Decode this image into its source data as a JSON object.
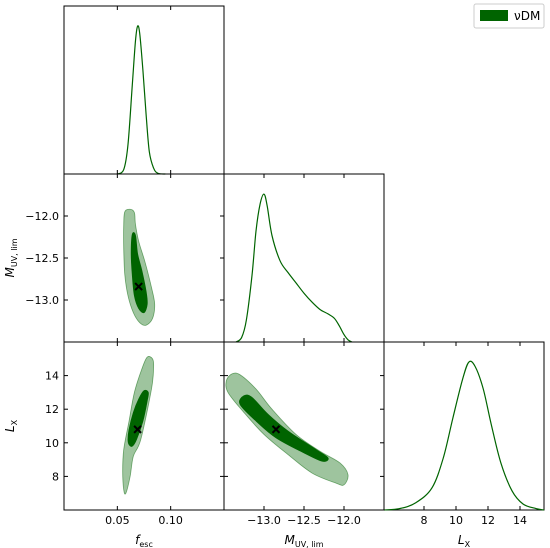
{
  "chart_data": {
    "type": "corner-plot",
    "series": [
      {
        "name": "νDM",
        "color": "#006400"
      }
    ],
    "params": [
      {
        "id": "fesc",
        "label": {
          "main": "f",
          "sub": "esc"
        },
        "range": [
          0.0,
          0.15
        ],
        "ticks": [
          0.05,
          0.1
        ],
        "tick_labels": [
          "0.05",
          "0.10"
        ],
        "marginal": [
          [
            0.05,
            0
          ],
          [
            0.056,
            0.03
          ],
          [
            0.06,
            0.2
          ],
          [
            0.064,
            0.6
          ],
          [
            0.067,
            0.9
          ],
          [
            0.069,
            1.0
          ],
          [
            0.071,
            0.95
          ],
          [
            0.074,
            0.7
          ],
          [
            0.077,
            0.4
          ],
          [
            0.08,
            0.15
          ],
          [
            0.084,
            0.04
          ],
          [
            0.088,
            0.005
          ],
          [
            0.095,
            0
          ]
        ]
      },
      {
        "id": "muv",
        "label": {
          "main": "M",
          "sub": "UV, lim"
        },
        "range": [
          -13.5,
          -11.5
        ],
        "ticks": [
          -13.0,
          -12.5,
          -12.0
        ],
        "tick_labels": [
          "−13.0",
          "−12.5",
          "−12.0"
        ],
        "y_ticks": [
          -13.0,
          -12.5,
          -12.0
        ],
        "y_tick_labels": [
          "−13.0",
          "−12.5",
          "−12.0"
        ],
        "y_range": [
          -13.5,
          -11.5
        ],
        "marginal": [
          [
            -13.35,
            0
          ],
          [
            -13.28,
            0.03
          ],
          [
            -13.22,
            0.15
          ],
          [
            -13.15,
            0.45
          ],
          [
            -13.1,
            0.75
          ],
          [
            -13.05,
            0.93
          ],
          [
            -13.0,
            1.0
          ],
          [
            -12.96,
            0.92
          ],
          [
            -12.9,
            0.72
          ],
          [
            -12.8,
            0.55
          ],
          [
            -12.7,
            0.47
          ],
          [
            -12.6,
            0.4
          ],
          [
            -12.5,
            0.33
          ],
          [
            -12.4,
            0.27
          ],
          [
            -12.3,
            0.22
          ],
          [
            -12.2,
            0.19
          ],
          [
            -12.12,
            0.16
          ],
          [
            -12.06,
            0.11
          ],
          [
            -12.0,
            0.05
          ],
          [
            -11.95,
            0.015
          ],
          [
            -11.9,
            0
          ]
        ]
      },
      {
        "id": "lx",
        "label": {
          "main": "L",
          "sub": "X"
        },
        "range": [
          5.5,
          15.5
        ],
        "ticks": [
          8,
          10,
          12,
          14
        ],
        "tick_labels": [
          "8",
          "10",
          "12",
          "14"
        ],
        "y_range": [
          6.0,
          16.0
        ],
        "y_ticks": [
          8,
          10,
          12,
          14
        ],
        "y_tick_labels": [
          "8",
          "10",
          "12",
          "14"
        ],
        "marginal": [
          [
            5.5,
            0.0
          ],
          [
            6.5,
            0.01
          ],
          [
            7.5,
            0.05
          ],
          [
            8.5,
            0.15
          ],
          [
            9.2,
            0.35
          ],
          [
            9.8,
            0.62
          ],
          [
            10.4,
            0.88
          ],
          [
            10.8,
            1.0
          ],
          [
            11.2,
            0.97
          ],
          [
            11.7,
            0.82
          ],
          [
            12.2,
            0.58
          ],
          [
            12.8,
            0.32
          ],
          [
            13.5,
            0.13
          ],
          [
            14.2,
            0.04
          ],
          [
            15.0,
            0.01
          ],
          [
            15.5,
            0
          ]
        ]
      }
    ],
    "panels": [
      {
        "x": "fesc",
        "y": "muv",
        "best_fit": [
          0.07,
          -12.84
        ],
        "contour_95": [
          [
            0.057,
            -11.95
          ],
          [
            0.062,
            -11.92
          ],
          [
            0.066,
            -11.96
          ],
          [
            0.067,
            -12.1
          ],
          [
            0.07,
            -12.3
          ],
          [
            0.076,
            -12.55
          ],
          [
            0.082,
            -12.85
          ],
          [
            0.085,
            -13.05
          ],
          [
            0.083,
            -13.22
          ],
          [
            0.077,
            -13.3
          ],
          [
            0.071,
            -13.27
          ],
          [
            0.065,
            -13.15
          ],
          [
            0.06,
            -12.95
          ],
          [
            0.057,
            -12.7
          ],
          [
            0.056,
            -12.4
          ],
          [
            0.056,
            -12.1
          ]
        ],
        "contour_68": [
          [
            0.064,
            -12.22
          ],
          [
            0.067,
            -12.23
          ],
          [
            0.069,
            -12.45
          ],
          [
            0.073,
            -12.65
          ],
          [
            0.077,
            -12.9
          ],
          [
            0.078,
            -13.05
          ],
          [
            0.075,
            -13.15
          ],
          [
            0.07,
            -13.1
          ],
          [
            0.066,
            -12.95
          ],
          [
            0.064,
            -12.7
          ],
          [
            0.063,
            -12.45
          ]
        ]
      },
      {
        "x": "fesc",
        "y": "lx",
        "best_fit": [
          0.069,
          10.8
        ],
        "contour_95": [
          [
            0.058,
            7.0
          ],
          [
            0.062,
            8.0
          ],
          [
            0.065,
            9.2
          ],
          [
            0.072,
            10.2
          ],
          [
            0.082,
            13.2
          ],
          [
            0.084,
            14.5
          ],
          [
            0.083,
            15.0
          ],
          [
            0.078,
            15.1
          ],
          [
            0.073,
            14.4
          ],
          [
            0.066,
            13.0
          ],
          [
            0.061,
            11.3
          ],
          [
            0.056,
            9.6
          ],
          [
            0.055,
            8.3
          ],
          [
            0.056,
            7.2
          ]
        ],
        "contour_68": [
          [
            0.061,
            9.9
          ],
          [
            0.064,
            9.8
          ],
          [
            0.068,
            10.2
          ],
          [
            0.074,
            11.3
          ],
          [
            0.078,
            12.5
          ],
          [
            0.079,
            13.0
          ],
          [
            0.075,
            13.1
          ],
          [
            0.07,
            12.6
          ],
          [
            0.065,
            11.8
          ],
          [
            0.061,
            10.8
          ],
          [
            0.06,
            10.2
          ]
        ]
      },
      {
        "x": "muv",
        "y": "lx",
        "best_fit": [
          -12.85,
          10.8
        ],
        "contour_95": [
          [
            -13.4,
            14.1
          ],
          [
            -13.3,
            14.05
          ],
          [
            -13.1,
            13.2
          ],
          [
            -12.9,
            12.0
          ],
          [
            -12.6,
            10.5
          ],
          [
            -12.3,
            9.5
          ],
          [
            -12.05,
            8.8
          ],
          [
            -11.95,
            8.1
          ],
          [
            -12.0,
            7.5
          ],
          [
            -12.1,
            7.6
          ],
          [
            -12.4,
            8.2
          ],
          [
            -12.7,
            9.3
          ],
          [
            -13.0,
            10.5
          ],
          [
            -13.25,
            11.8
          ],
          [
            -13.45,
            13.0
          ],
          [
            -13.47,
            13.7
          ]
        ],
        "contour_68": [
          [
            -13.25,
            12.8
          ],
          [
            -13.15,
            12.7
          ],
          [
            -12.95,
            11.7
          ],
          [
            -12.7,
            10.7
          ],
          [
            -12.35,
            9.6
          ],
          [
            -12.2,
            9.1
          ],
          [
            -12.27,
            8.9
          ],
          [
            -12.5,
            9.4
          ],
          [
            -12.85,
            10.3
          ],
          [
            -13.1,
            11.3
          ],
          [
            -13.3,
            12.3
          ]
        ]
      }
    ]
  },
  "legend": {
    "label": "νDM"
  }
}
